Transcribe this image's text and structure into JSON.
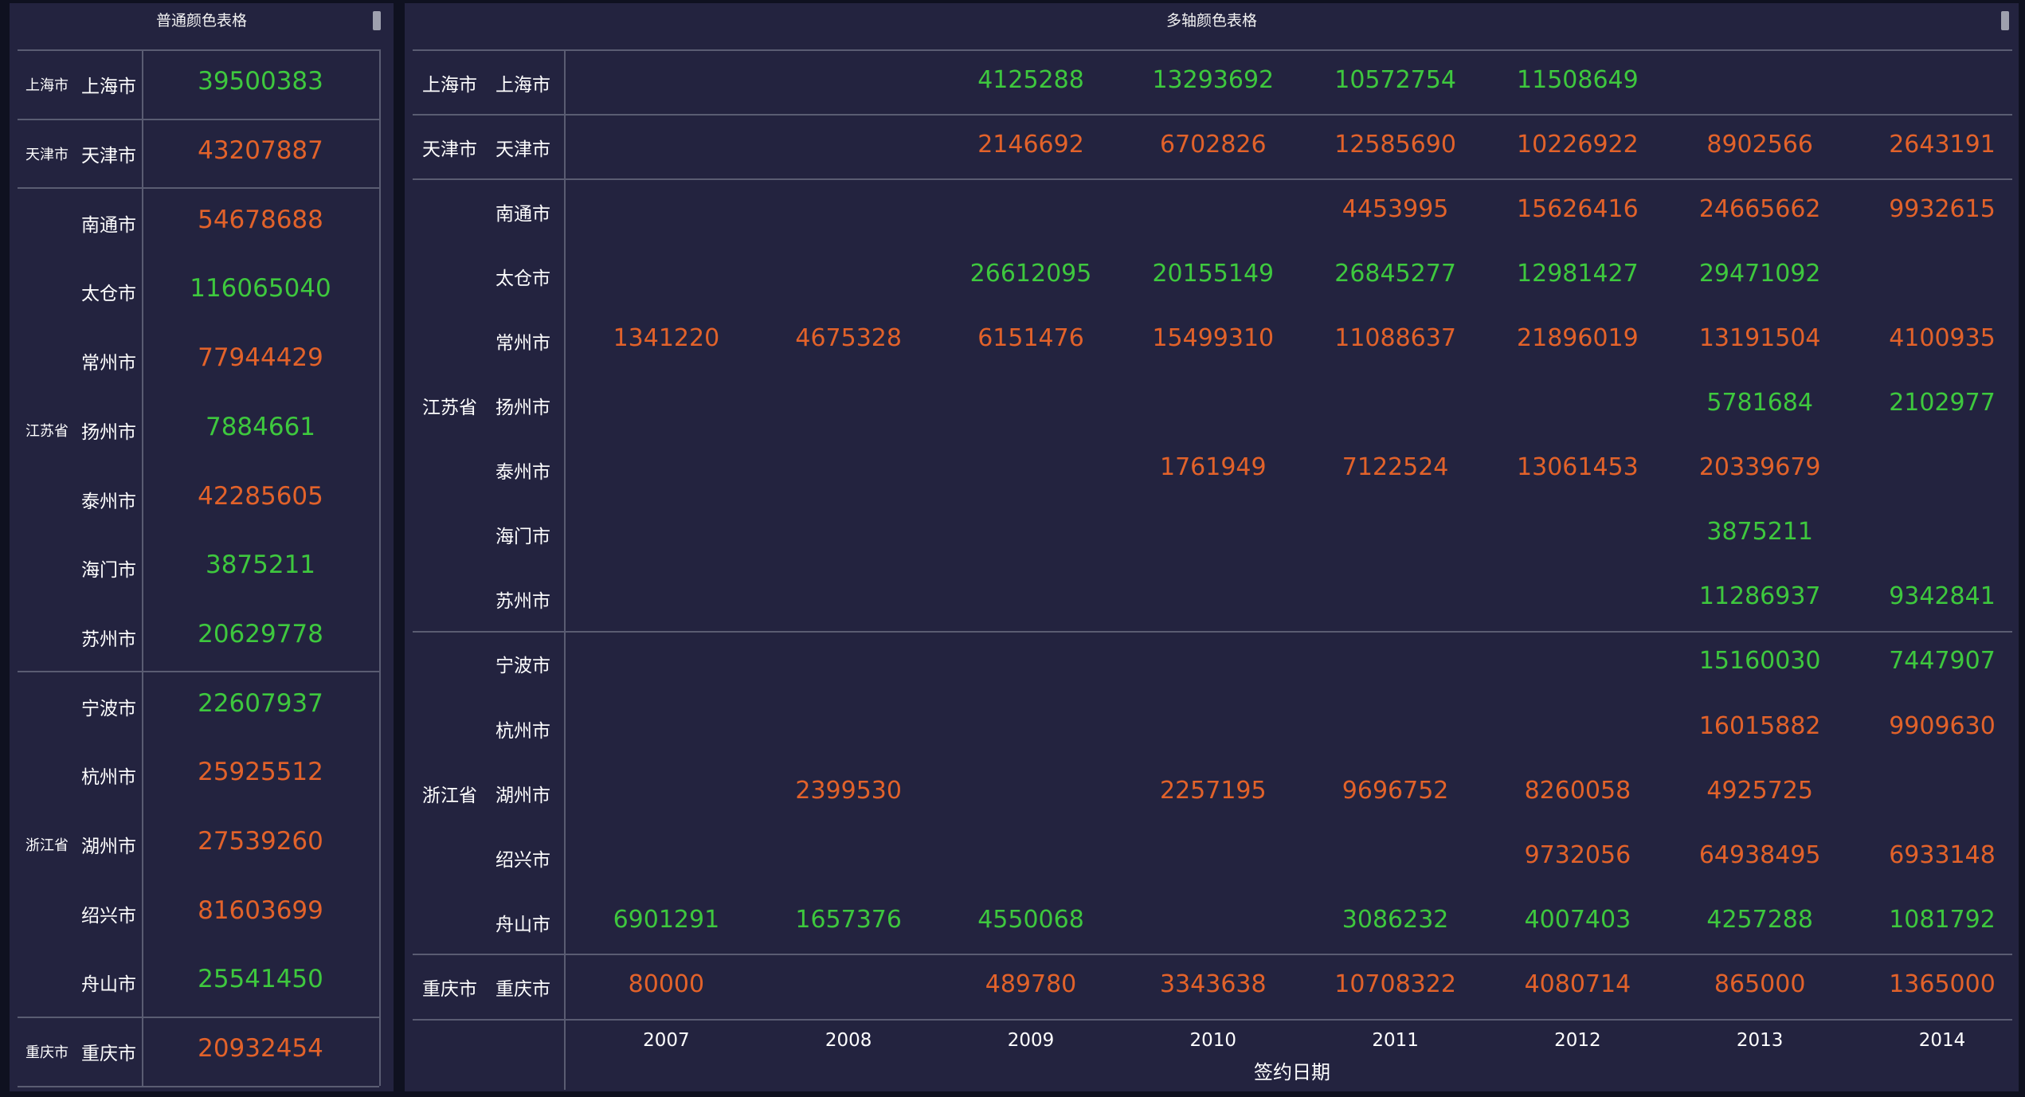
{
  "left": {
    "title": "普通颜色表格",
    "groups": [
      {
        "province": "上海市",
        "rows": [
          {
            "city": "上海市",
            "value": "39500383",
            "color": "green"
          }
        ]
      },
      {
        "province": "天津市",
        "rows": [
          {
            "city": "天津市",
            "value": "43207887",
            "color": "orange"
          }
        ]
      },
      {
        "province": "江苏省",
        "rows": [
          {
            "city": "南通市",
            "value": "54678688",
            "color": "orange"
          },
          {
            "city": "太仓市",
            "value": "116065040",
            "color": "green"
          },
          {
            "city": "常州市",
            "value": "77944429",
            "color": "orange"
          },
          {
            "city": "扬州市",
            "value": "7884661",
            "color": "green"
          },
          {
            "city": "泰州市",
            "value": "42285605",
            "color": "orange"
          },
          {
            "city": "海门市",
            "value": "3875211",
            "color": "green"
          },
          {
            "city": "苏州市",
            "value": "20629778",
            "color": "green"
          }
        ]
      },
      {
        "province": "浙江省",
        "rows": [
          {
            "city": "宁波市",
            "value": "22607937",
            "color": "green"
          },
          {
            "city": "杭州市",
            "value": "25925512",
            "color": "orange"
          },
          {
            "city": "湖州市",
            "value": "27539260",
            "color": "orange"
          },
          {
            "city": "绍兴市",
            "value": "81603699",
            "color": "orange"
          },
          {
            "city": "舟山市",
            "value": "25541450",
            "color": "green"
          }
        ]
      },
      {
        "province": "重庆市",
        "rows": [
          {
            "city": "重庆市",
            "value": "20932454",
            "color": "orange"
          }
        ]
      }
    ]
  },
  "right": {
    "title": "多轴颜色表格",
    "years": [
      "2007",
      "2008",
      "2009",
      "2010",
      "2011",
      "2012",
      "2013",
      "2014"
    ],
    "axis_title": "签约日期",
    "groups": [
      {
        "province": "上海市",
        "rows": [
          {
            "city": "上海市",
            "cells": [
              null,
              null,
              [
                "4125288",
                "green"
              ],
              [
                "13293692",
                "green"
              ],
              [
                "10572754",
                "green"
              ],
              [
                "11508649",
                "green"
              ],
              null,
              null
            ]
          }
        ]
      },
      {
        "province": "天津市",
        "rows": [
          {
            "city": "天津市",
            "cells": [
              null,
              null,
              [
                "2146692",
                "orange"
              ],
              [
                "6702826",
                "orange"
              ],
              [
                "12585690",
                "orange"
              ],
              [
                "10226922",
                "orange"
              ],
              [
                "8902566",
                "orange"
              ],
              [
                "2643191",
                "orange"
              ]
            ]
          }
        ]
      },
      {
        "province": "江苏省",
        "rows": [
          {
            "city": "南通市",
            "cells": [
              null,
              null,
              null,
              null,
              [
                "4453995",
                "orange"
              ],
              [
                "15626416",
                "orange"
              ],
              [
                "24665662",
                "orange"
              ],
              [
                "9932615",
                "orange"
              ]
            ]
          },
          {
            "city": "太仓市",
            "cells": [
              null,
              null,
              [
                "26612095",
                "green"
              ],
              [
                "20155149",
                "green"
              ],
              [
                "26845277",
                "green"
              ],
              [
                "12981427",
                "green"
              ],
              [
                "29471092",
                "green"
              ],
              null
            ]
          },
          {
            "city": "常州市",
            "cells": [
              [
                "1341220",
                "orange"
              ],
              [
                "4675328",
                "orange"
              ],
              [
                "6151476",
                "orange"
              ],
              [
                "15499310",
                "orange"
              ],
              [
                "11088637",
                "orange"
              ],
              [
                "21896019",
                "orange"
              ],
              [
                "13191504",
                "orange"
              ],
              [
                "4100935",
                "orange"
              ]
            ]
          },
          {
            "city": "扬州市",
            "cells": [
              null,
              null,
              null,
              null,
              null,
              null,
              [
                "5781684",
                "green"
              ],
              [
                "2102977",
                "green"
              ]
            ]
          },
          {
            "city": "泰州市",
            "cells": [
              null,
              null,
              null,
              [
                "1761949",
                "orange"
              ],
              [
                "7122524",
                "orange"
              ],
              [
                "13061453",
                "orange"
              ],
              [
                "20339679",
                "orange"
              ],
              null
            ]
          },
          {
            "city": "海门市",
            "cells": [
              null,
              null,
              null,
              null,
              null,
              null,
              [
                "3875211",
                "green"
              ],
              null
            ]
          },
          {
            "city": "苏州市",
            "cells": [
              null,
              null,
              null,
              null,
              null,
              null,
              [
                "11286937",
                "green"
              ],
              [
                "9342841",
                "green"
              ]
            ]
          }
        ]
      },
      {
        "province": "浙江省",
        "rows": [
          {
            "city": "宁波市",
            "cells": [
              null,
              null,
              null,
              null,
              null,
              null,
              [
                "15160030",
                "green"
              ],
              [
                "7447907",
                "green"
              ]
            ]
          },
          {
            "city": "杭州市",
            "cells": [
              null,
              null,
              null,
              null,
              null,
              null,
              [
                "16015882",
                "orange"
              ],
              [
                "9909630",
                "orange"
              ]
            ]
          },
          {
            "city": "湖州市",
            "cells": [
              null,
              [
                "2399530",
                "orange"
              ],
              null,
              [
                "2257195",
                "orange"
              ],
              [
                "9696752",
                "orange"
              ],
              [
                "8260058",
                "orange"
              ],
              [
                "4925725",
                "orange"
              ],
              null
            ]
          },
          {
            "city": "绍兴市",
            "cells": [
              null,
              null,
              null,
              null,
              null,
              [
                "9732056",
                "orange"
              ],
              [
                "64938495",
                "orange"
              ],
              [
                "6933148",
                "orange"
              ]
            ]
          },
          {
            "city": "舟山市",
            "cells": [
              [
                "6901291",
                "green"
              ],
              [
                "1657376",
                "green"
              ],
              [
                "4550068",
                "green"
              ],
              null,
              [
                "3086232",
                "green"
              ],
              [
                "4007403",
                "green"
              ],
              [
                "4257288",
                "green"
              ],
              [
                "1081792",
                "green"
              ]
            ]
          }
        ]
      },
      {
        "province": "重庆市",
        "rows": [
          {
            "city": "重庆市",
            "cells": [
              [
                "80000",
                "orange"
              ],
              null,
              [
                "489780",
                "orange"
              ],
              [
                "3343638",
                "orange"
              ],
              [
                "10708322",
                "orange"
              ],
              [
                "4080714",
                "orange"
              ],
              [
                "865000",
                "orange"
              ],
              [
                "1365000",
                "orange"
              ]
            ]
          }
        ]
      }
    ]
  },
  "colors": {
    "green": "#3ec83e",
    "orange": "#e2622a",
    "panel": "#23233f",
    "background": "#0f1120",
    "grid": "#5a5c72"
  }
}
